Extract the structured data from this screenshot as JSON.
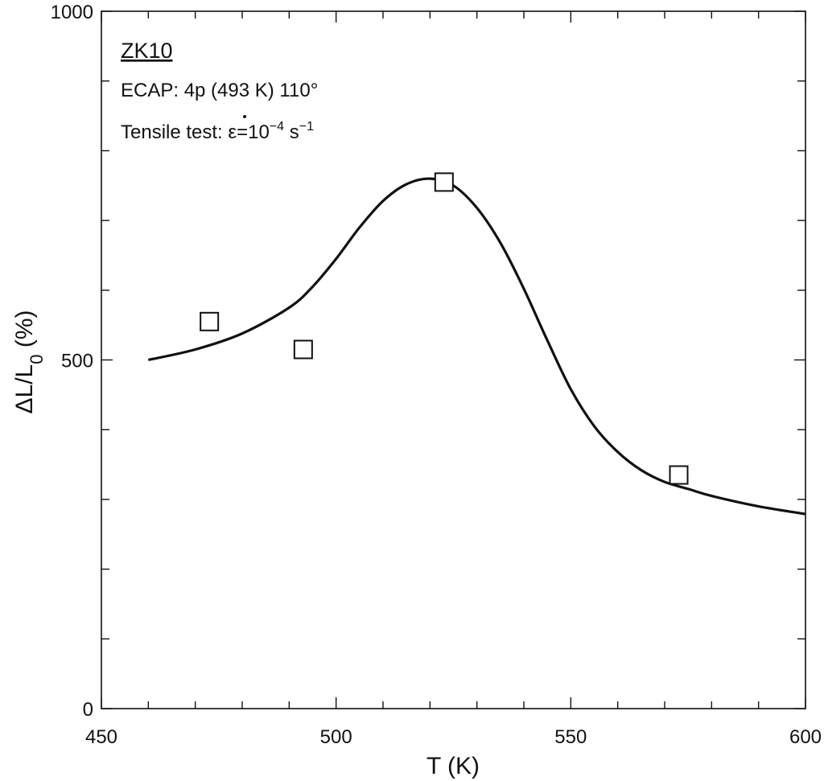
{
  "chart_data": {
    "type": "scatter",
    "xlabel": "T (K)",
    "ylabel": "ΔL/L0 (%)",
    "xlim": [
      450,
      600
    ],
    "ylim": [
      0,
      1000
    ],
    "x_ticks": [
      450,
      500,
      550,
      600
    ],
    "y_ticks": [
      0,
      500,
      1000
    ],
    "annotations": {
      "material": "ZK10",
      "processing": "ECAP: 4p (493 K) 110°",
      "test_prefix": "Tensile test: ",
      "strain_rate_symbol": "ε",
      "strain_rate_value": "=10",
      "strain_rate_exp": "−4",
      "strain_rate_unit": " s",
      "strain_rate_unit_exp": "−1"
    },
    "series": [
      {
        "marker": "open-square",
        "x": [
          473,
          493,
          523,
          573
        ],
        "y": [
          555,
          515,
          755,
          335
        ]
      },
      {
        "style": "line",
        "x": [
          460,
          470,
          480,
          490,
          495,
          500,
          505,
          510,
          515,
          520,
          525,
          530,
          535,
          540,
          545,
          550,
          555,
          560,
          565,
          570,
          575,
          580,
          590,
          600
        ],
        "y": [
          500,
          515,
          538,
          575,
          605,
          645,
          690,
          728,
          752,
          760,
          750,
          718,
          668,
          602,
          528,
          458,
          405,
          368,
          342,
          325,
          315,
          305,
          290,
          279
        ]
      }
    ]
  }
}
